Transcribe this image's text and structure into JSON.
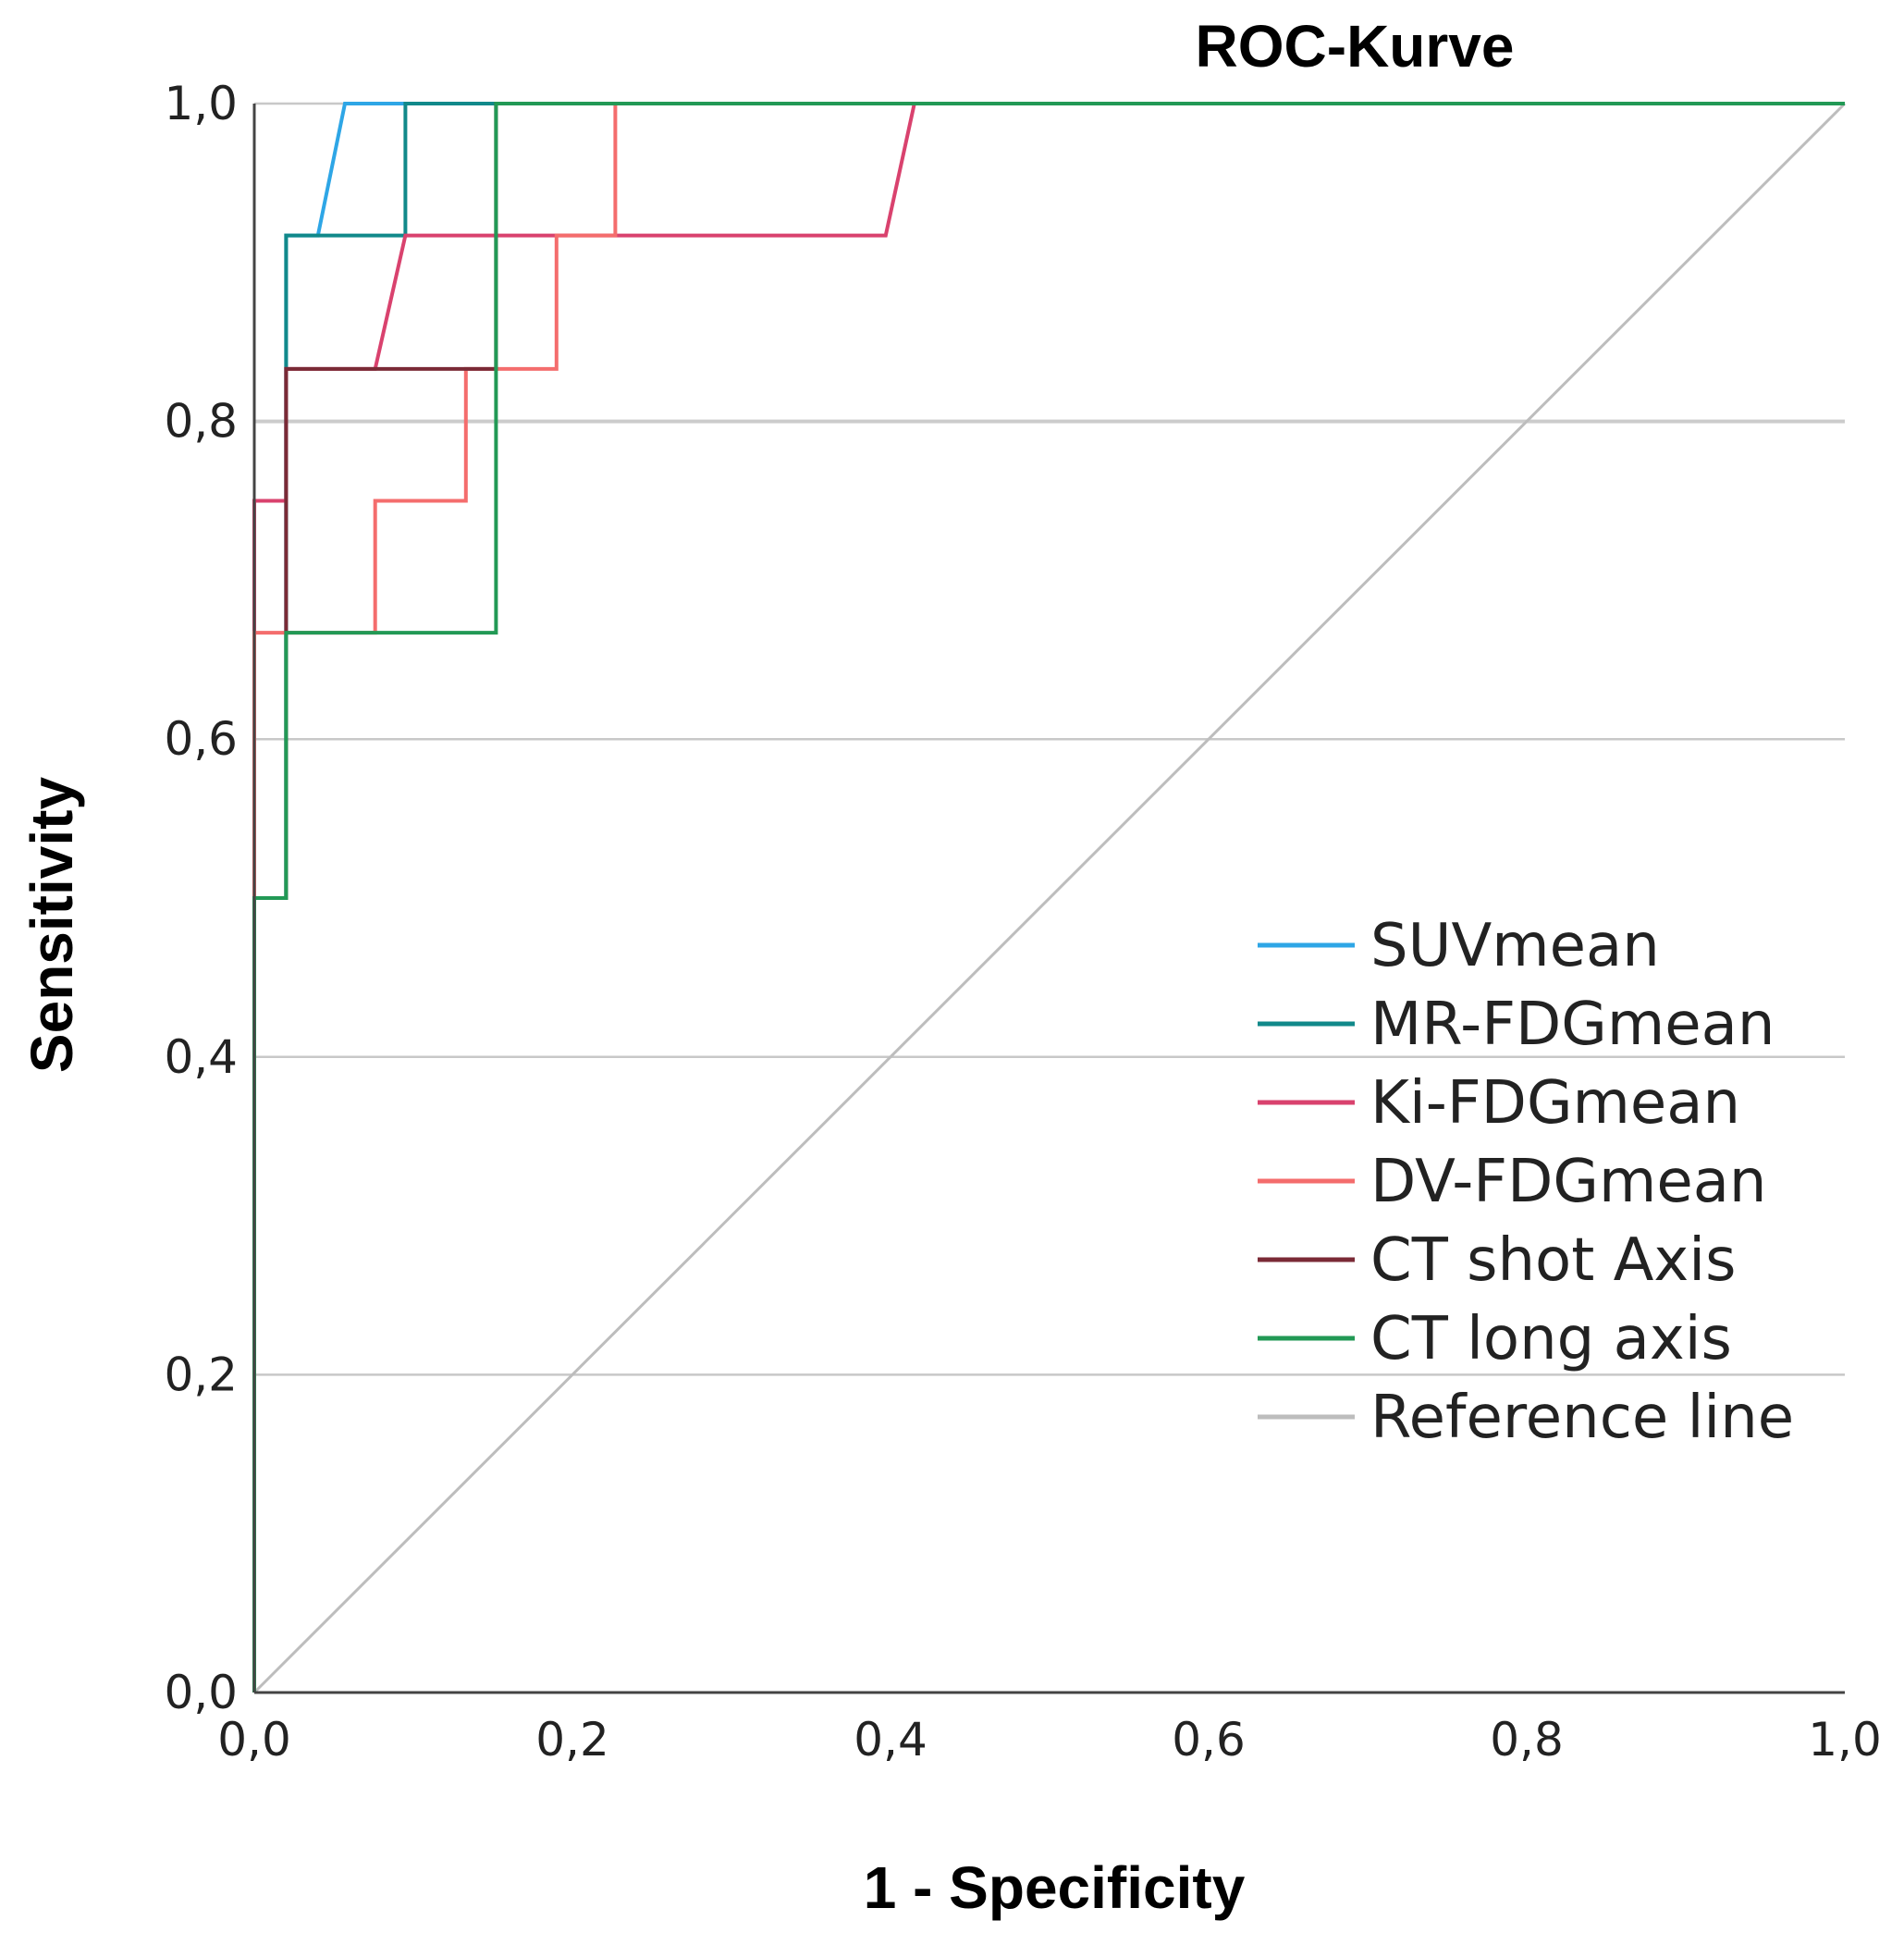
{
  "chart_data": {
    "type": "line",
    "title": "ROC-Kurve",
    "xlabel": "1 - Specificity",
    "ylabel": "Sensitivity",
    "xlim": [
      0,
      1
    ],
    "ylim": [
      0,
      1
    ],
    "x_ticks": [
      "0,0",
      "0,2",
      "0,4",
      "0,6",
      "0,8",
      "1,0"
    ],
    "y_ticks": [
      "0,0",
      "0,2",
      "0,4",
      "0,6",
      "0,8",
      "1,0"
    ],
    "grid": "horizontal",
    "legend_position": "right",
    "series": [
      {
        "name": "SUVmean",
        "color": "#2ea6e6",
        "points": [
          [
            0,
            0
          ],
          [
            0,
            0.5
          ],
          [
            0.02,
            0.5
          ],
          [
            0.02,
            0.833
          ],
          [
            0.02,
            0.917
          ],
          [
            0.04,
            0.917
          ],
          [
            0.057,
            1.0
          ],
          [
            1,
            1
          ]
        ]
      },
      {
        "name": "MR-FDGmean",
        "color": "#11898a",
        "points": [
          [
            0,
            0
          ],
          [
            0,
            0.5
          ],
          [
            0.02,
            0.5
          ],
          [
            0.02,
            0.917
          ],
          [
            0.095,
            0.917
          ],
          [
            0.095,
            1.0
          ],
          [
            1,
            1
          ]
        ]
      },
      {
        "name": "Ki-FDGmean",
        "color": "#d9426e",
        "points": [
          [
            0,
            0
          ],
          [
            0,
            0.5
          ],
          [
            0,
            0.75
          ],
          [
            0.02,
            0.75
          ],
          [
            0.02,
            0.833
          ],
          [
            0.076,
            0.833
          ],
          [
            0.095,
            0.917
          ],
          [
            0.397,
            0.917
          ],
          [
            0.415,
            1.0
          ],
          [
            1,
            1
          ]
        ]
      },
      {
        "name": "DV-FDGmean",
        "color": "#f46d6d",
        "points": [
          [
            0,
            0
          ],
          [
            0,
            0.5
          ],
          [
            0,
            0.667
          ],
          [
            0.076,
            0.667
          ],
          [
            0.076,
            0.75
          ],
          [
            0.133,
            0.75
          ],
          [
            0.133,
            0.833
          ],
          [
            0.19,
            0.833
          ],
          [
            0.19,
            0.917
          ],
          [
            0.227,
            0.917
          ],
          [
            0.227,
            1.0
          ],
          [
            1,
            1
          ]
        ]
      },
      {
        "name": "CT shot Axis",
        "color": "#7a2a36",
        "points": [
          [
            0,
            0
          ],
          [
            0,
            0.5
          ],
          [
            0.02,
            0.5
          ],
          [
            0.02,
            0.833
          ],
          [
            0.152,
            0.833
          ],
          [
            0.152,
            1.0
          ],
          [
            1,
            1
          ]
        ]
      },
      {
        "name": "CT long axis",
        "color": "#229955",
        "points": [
          [
            0,
            0
          ],
          [
            0,
            0.5
          ],
          [
            0.02,
            0.5
          ],
          [
            0.02,
            0.667
          ],
          [
            0.152,
            0.667
          ],
          [
            0.152,
            1.0
          ],
          [
            1,
            1
          ]
        ]
      },
      {
        "name": "Reference line",
        "color": "#bdbdbd",
        "points": [
          [
            0,
            0
          ],
          [
            1,
            1
          ]
        ]
      }
    ]
  }
}
